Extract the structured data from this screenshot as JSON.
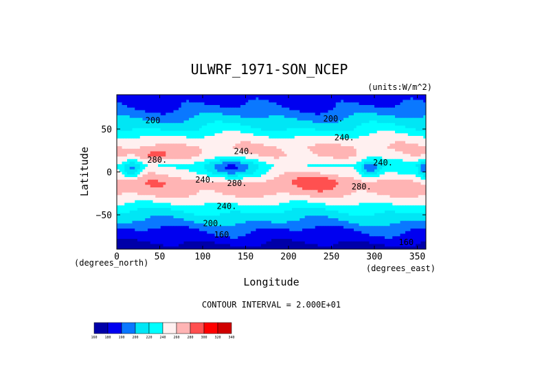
{
  "chart_data": {
    "type": "heatmap",
    "subtype": "filled-contour map",
    "title": "ULWRF_1971-SON_NCEP",
    "units_label": "(units:W/m^2)",
    "xlabel": "Longitude",
    "ylabel": "Latitude",
    "x_unit_label": "(degrees_east)",
    "y_unit_label": "(degrees_north)",
    "xlim": [
      0,
      360
    ],
    "ylim": [
      -90,
      90
    ],
    "x_ticks": [
      0,
      50,
      100,
      150,
      200,
      250,
      300,
      350
    ],
    "y_ticks": [
      -50,
      0,
      50
    ],
    "y_tick_labels": [
      "−50",
      "0",
      "50"
    ],
    "contour_interval_text": "CONTOUR INTERVAL = 2.000E+01",
    "contour_levels": [
      160,
      180,
      200,
      220,
      240,
      260,
      280,
      300,
      320
    ],
    "colorbar": {
      "labels": [
        "160",
        "180",
        "190",
        "200",
        "220",
        "240",
        "260",
        "280",
        "300",
        "320",
        "340"
      ],
      "colors": [
        "#0000a8",
        "#0000f0",
        "#0a78ff",
        "#00e6f5",
        "#00ffff",
        "#fff0f0",
        "#ffb4b4",
        "#ff5050",
        "#ff0000",
        "#d00000"
      ]
    },
    "contour_labels": [
      {
        "text": "200",
        "lon": 42,
        "lat": 60
      },
      {
        "text": "200.",
        "lon": 252,
        "lat": 62
      },
      {
        "text": "240.",
        "lon": 265,
        "lat": 40
      },
      {
        "text": "240.",
        "lon": 148,
        "lat": 24
      },
      {
        "text": "280.",
        "lon": 47,
        "lat": 14
      },
      {
        "text": "240.",
        "lon": 310,
        "lat": 11
      },
      {
        "text": "240.",
        "lon": 103,
        "lat": -9
      },
      {
        "text": "280.",
        "lon": 140,
        "lat": -13
      },
      {
        "text": "280.",
        "lon": 285,
        "lat": -17
      },
      {
        "text": "240.",
        "lon": 128,
        "lat": -40
      },
      {
        "text": "200.",
        "lon": 112,
        "lat": -60
      },
      {
        "text": "160",
        "lon": 122,
        "lat": -73
      },
      {
        "text": "160",
        "lon": 337,
        "lat": -82
      }
    ],
    "zonal_profile": [
      {
        "lat": 90,
        "value": 170
      },
      {
        "lat": 75,
        "value": 180
      },
      {
        "lat": 62,
        "value": 202
      },
      {
        "lat": 50,
        "value": 222
      },
      {
        "lat": 40,
        "value": 245
      },
      {
        "lat": 28,
        "value": 262
      },
      {
        "lat": 18,
        "value": 258
      },
      {
        "lat": 8,
        "value": 235
      },
      {
        "lat": 0,
        "value": 248
      },
      {
        "lat": -12,
        "value": 272
      },
      {
        "lat": -25,
        "value": 265
      },
      {
        "lat": -35,
        "value": 245
      },
      {
        "lat": -45,
        "value": 222
      },
      {
        "lat": -57,
        "value": 202
      },
      {
        "lat": -68,
        "value": 180
      },
      {
        "lat": -80,
        "value": 165
      },
      {
        "lat": -90,
        "value": 150
      }
    ]
  }
}
